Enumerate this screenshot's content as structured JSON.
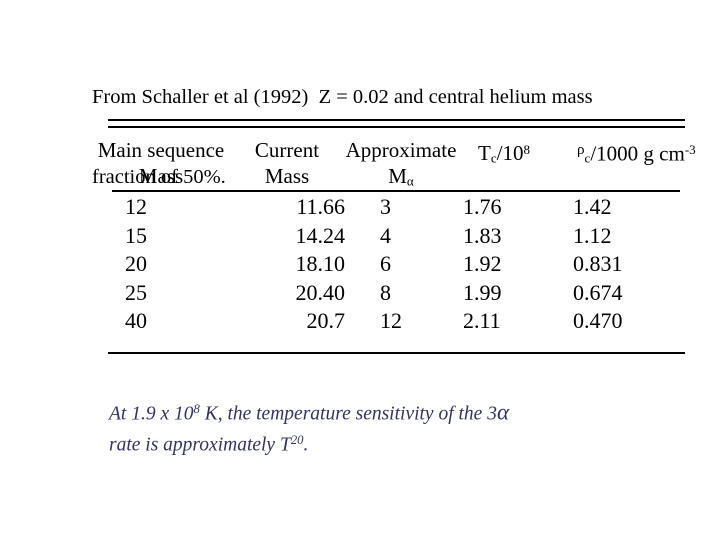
{
  "slide": {
    "title_line1": "From Schaller et al (1992)  Z = 0.02 and central helium mass",
    "title_line2": "fraction of 50%."
  },
  "table": {
    "headers": {
      "main_sequence_line1": "Main sequence",
      "main_sequence_line2": "Mass",
      "current_line1": "Current",
      "current_line2": "Mass",
      "approximate_line1": "Approximate",
      "approximate_base": "M",
      "approximate_sub": "α",
      "tc_base": "T",
      "tc_sub": "c",
      "tc_mid": "/10",
      "tc_sup": "8",
      "rho_base": "ρ",
      "rho_sub": "c",
      "rho_mid": "/1000 g cm",
      "rho_sup": "-3"
    },
    "rows": [
      [
        "12",
        "11.66",
        "3",
        "1.76",
        "1.42"
      ],
      [
        "15",
        "14.24",
        "4",
        "1.83",
        "1.12"
      ],
      [
        "20",
        "18.10",
        "6",
        "1.92",
        "0.831"
      ],
      [
        "25",
        "20.40",
        "8",
        "1.99",
        "0.674"
      ],
      [
        "40",
        "20.7",
        "12",
        "2.11",
        "0.470"
      ]
    ]
  },
  "footnote": {
    "line1_pre": "At 1.9 x 10",
    "line1_sup": "8",
    "line1_mid": " K, the temperature sensitivity of the 3",
    "line1_alpha": "α",
    "line2_pre": "rate is approximately T",
    "line2_sup": "20",
    "line2_end": ".",
    "text_color": "#333366"
  },
  "colors": {
    "background": "#ffffff",
    "text": "#000000",
    "rule": "#000000"
  }
}
